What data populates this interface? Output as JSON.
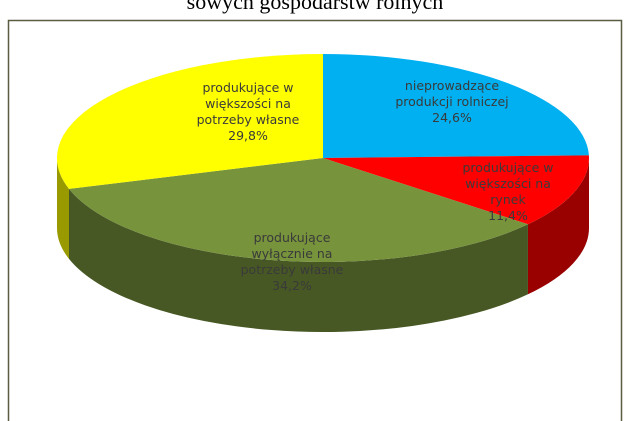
{
  "chart_data": {
    "type": "pie3d",
    "title": "sowych gospodarstw rolnych",
    "categories": [
      "nieprowadzące produkcji rolniczej",
      "produkujące w większości na rynek",
      "produkujące wyłącznie na potrzeby własne",
      "produkujące w większości na potrzeby własne"
    ],
    "values": [
      24.6,
      11.4,
      34.2,
      29.8
    ],
    "value_labels": [
      "24,6%",
      "11,4%",
      "34,2%",
      "29,8%"
    ],
    "colors": [
      "#00b0f0",
      "#ff0000",
      "#77933c",
      "#ffff00"
    ]
  }
}
